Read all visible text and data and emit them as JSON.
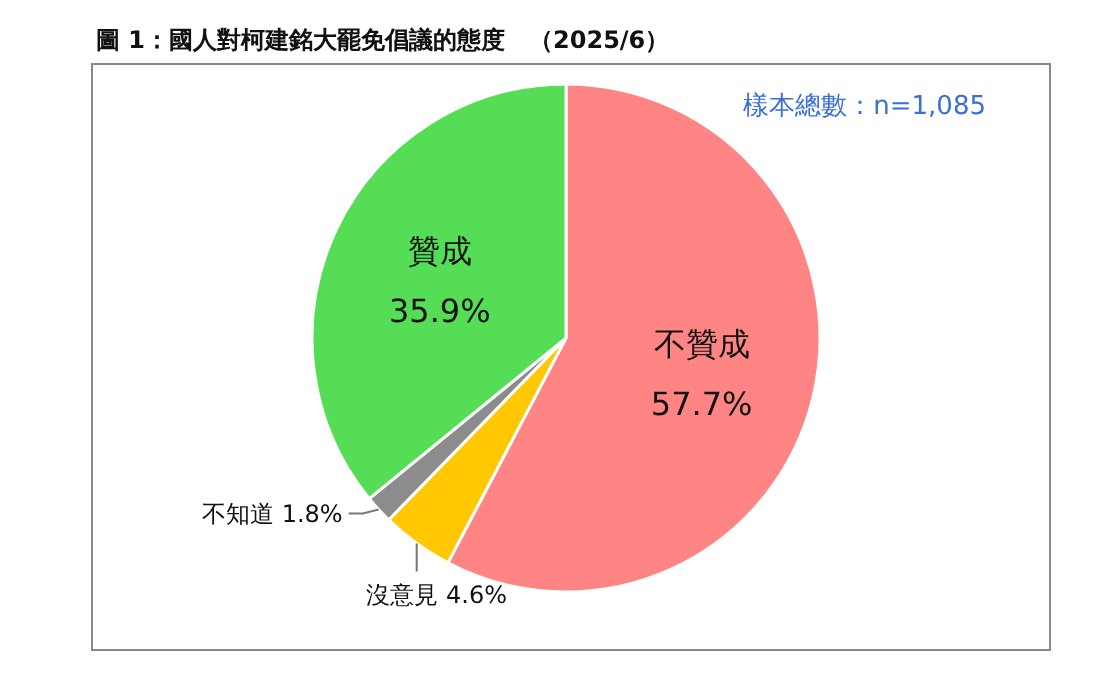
{
  "chart_data": {
    "type": "pie",
    "title": "圖 1：國人對柯建銘大罷免倡議的態度　（2025/6）",
    "annotations": [
      "樣本總數：n=1,085"
    ],
    "categories": [
      "不贊成",
      "沒意見",
      "不知道",
      "贊成"
    ],
    "values": [
      57.7,
      4.6,
      1.8,
      35.9
    ],
    "value_labels": [
      "57.7%",
      "4.6%",
      "1.8%",
      "35.9%"
    ],
    "colors": [
      "#ff8585",
      "#ffc800",
      "#8c8c8c",
      "#55dd55"
    ]
  }
}
